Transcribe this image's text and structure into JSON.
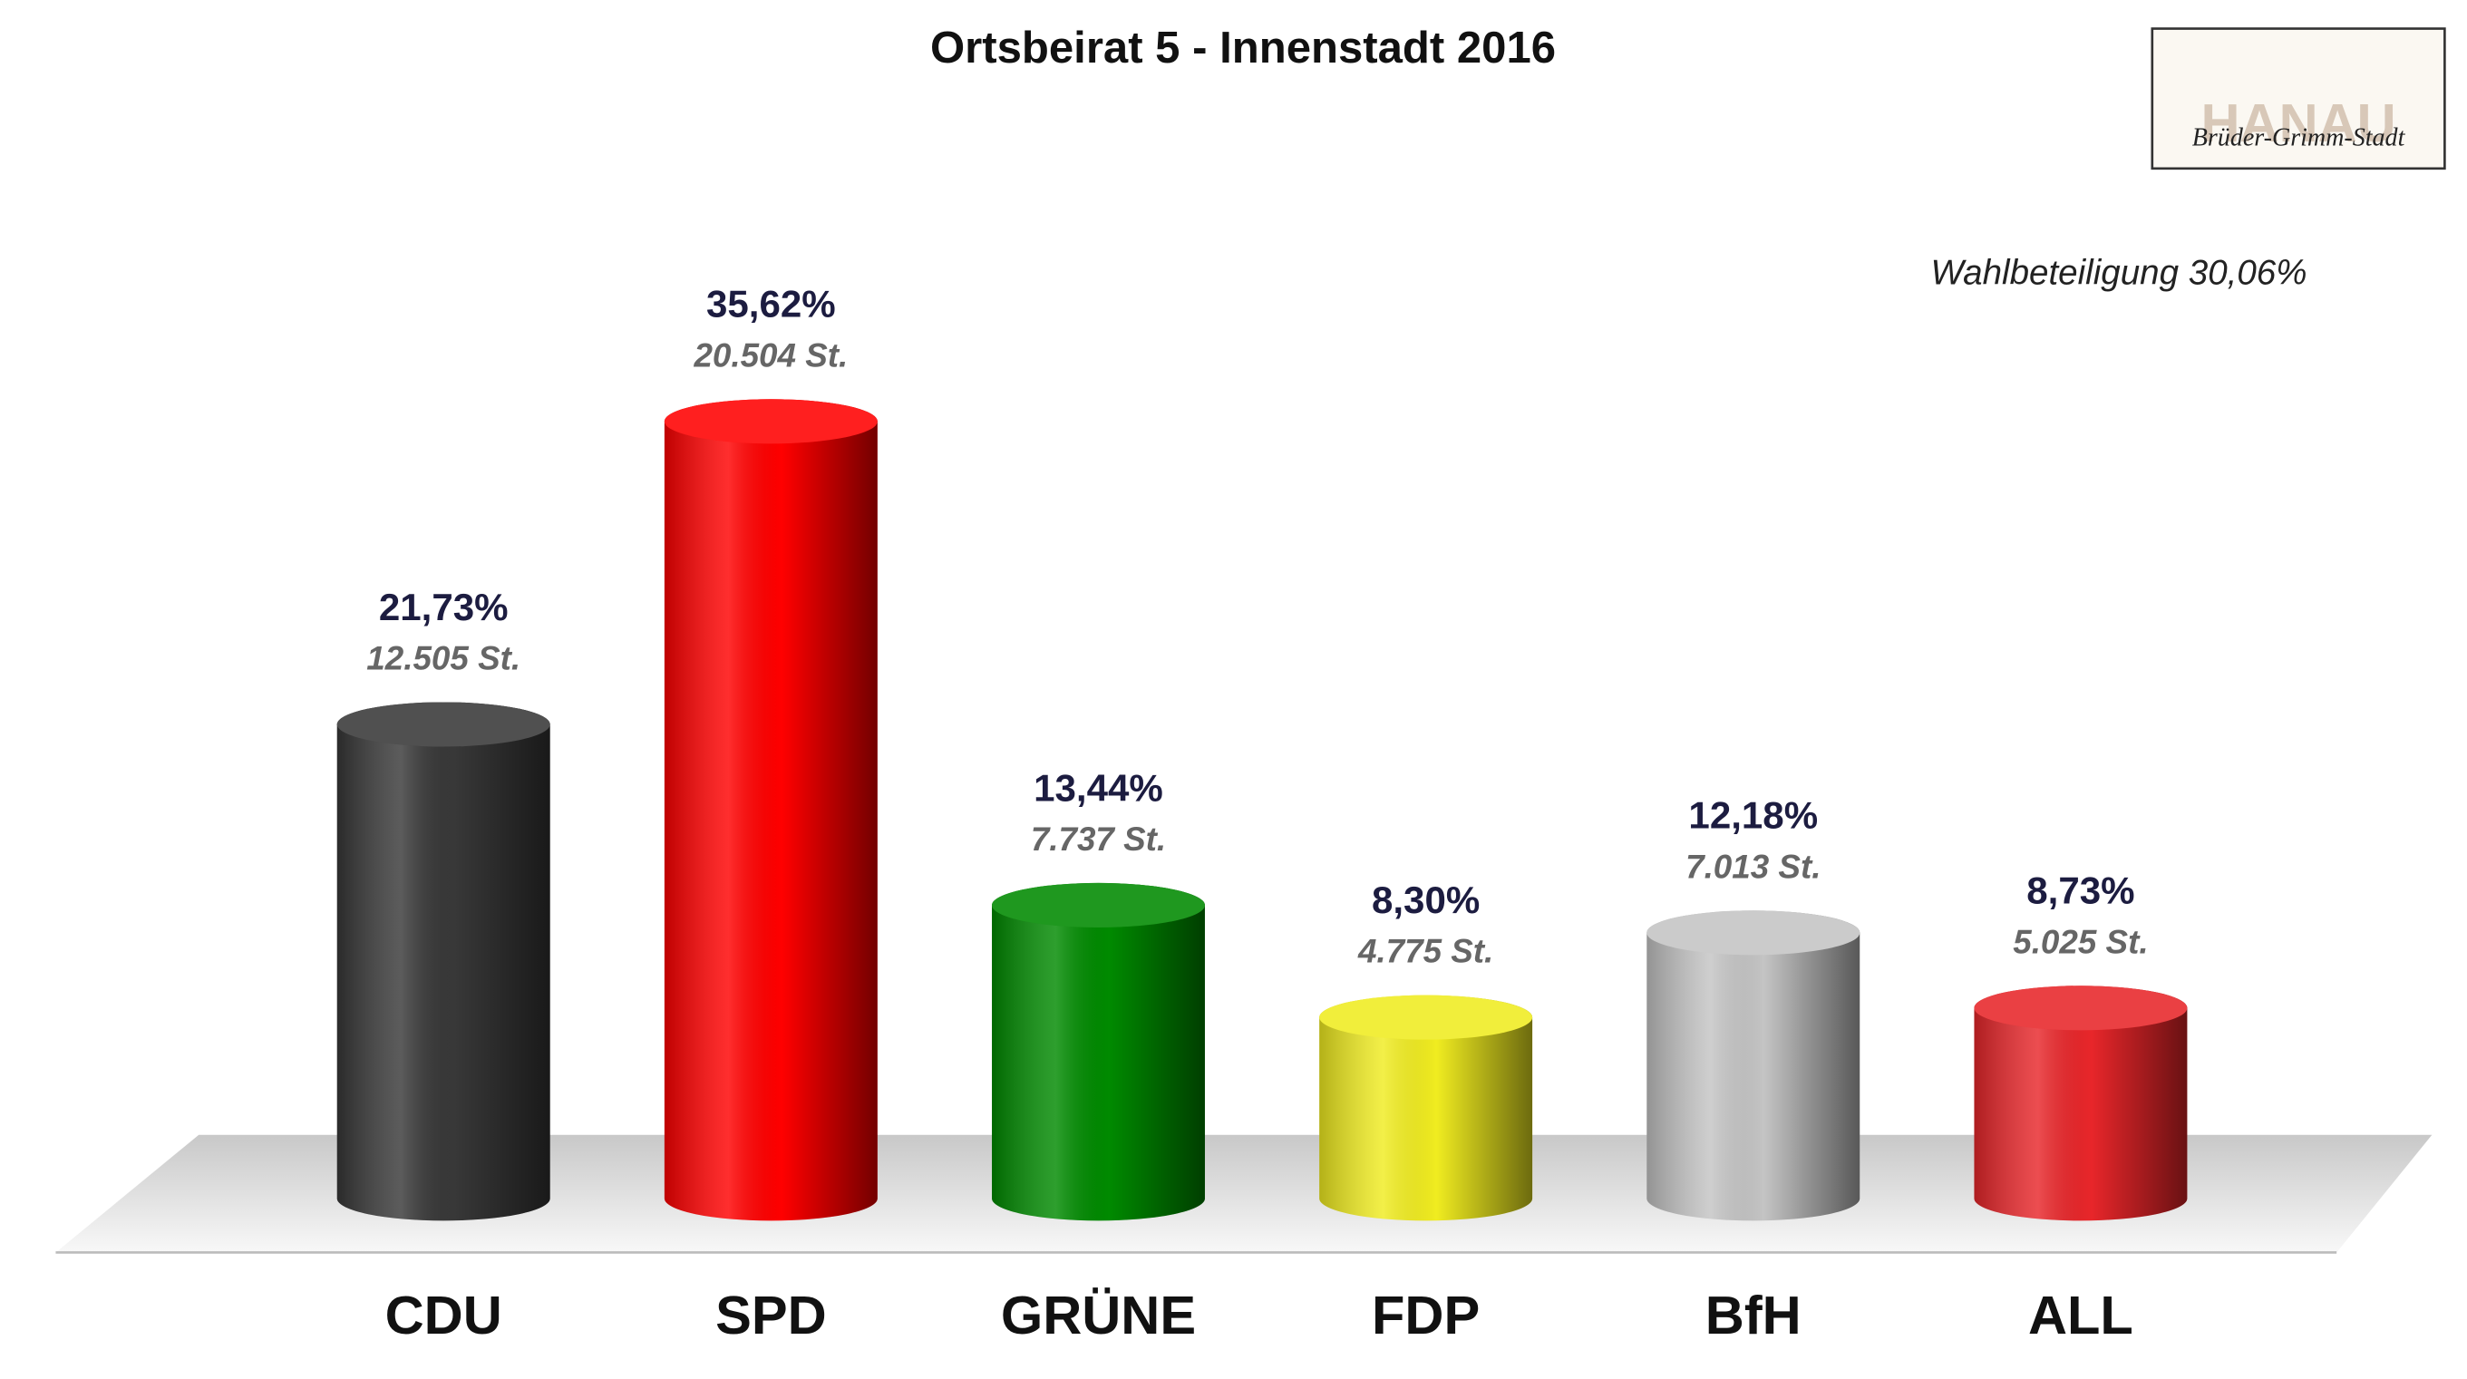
{
  "chart_data": {
    "type": "cylinder-bar",
    "title": "Ortsbeirat 5 - Innenstadt 2016",
    "annotation": "Wahlbeteiligung 30,06%",
    "categories": [
      "CDU",
      "SPD",
      "GRÜNE",
      "FDP",
      "BfH",
      "ALL"
    ],
    "values": [
      21.73,
      35.62,
      13.44,
      8.3,
      12.18,
      8.73
    ],
    "value_labels": [
      "21,73%",
      "35,62%",
      "13,44%",
      "8,30%",
      "12,18%",
      "8,73%"
    ],
    "vote_labels": [
      "12.505 St.",
      "20.504 St.",
      "7.737 St.",
      "4.775 St.",
      "7.013 St.",
      "5.025 St."
    ],
    "colors": [
      "#383838",
      "#ff0000",
      "#008a00",
      "#f0ec20",
      "#c4c4c4",
      "#e8262a"
    ],
    "ylim": [
      0,
      40
    ]
  },
  "logo": {
    "title": "HANAU",
    "subtitle": "Brüder-Grimm-Stadt"
  }
}
